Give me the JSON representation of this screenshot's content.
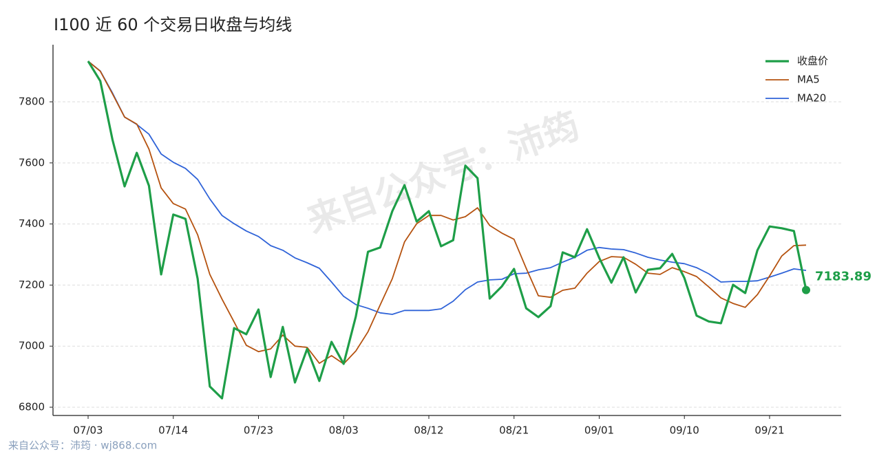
{
  "chart_data": {
    "type": "line",
    "title": "I100 近 60 个交易日收盘与均线",
    "watermark": "来自公众号：沛筠",
    "footer": "来自公众号：沛筠 · wj868.com",
    "categories": [
      "07/03",
      null,
      null,
      null,
      null,
      null,
      null,
      "07/14",
      null,
      null,
      null,
      null,
      null,
      null,
      "07/23",
      null,
      null,
      null,
      null,
      null,
      null,
      "08/03",
      null,
      null,
      null,
      null,
      null,
      null,
      "08/12",
      null,
      null,
      null,
      null,
      null,
      null,
      "08/21",
      null,
      null,
      null,
      null,
      null,
      null,
      "09/01",
      null,
      null,
      null,
      null,
      null,
      null,
      "09/10",
      null,
      null,
      null,
      null,
      null,
      null,
      "09/21",
      null,
      null,
      null
    ],
    "series": [
      {
        "name": "收盘价",
        "color": "#1e9e48",
        "width": 3.2,
        "values": [
          7933,
          7868,
          7676,
          7523,
          7633,
          7525,
          7235,
          7431,
          7417,
          7221,
          6868,
          6829,
          7059,
          7039,
          7120,
          6899,
          7063,
          6881,
          6991,
          6886,
          7014,
          6942,
          7097,
          7309,
          7323,
          7442,
          7527,
          7408,
          7442,
          7327,
          7347,
          7591,
          7550,
          7156,
          7196,
          7253,
          7124,
          7095,
          7131,
          7307,
          7291,
          7383,
          7289,
          7208,
          7291,
          7176,
          7250,
          7255,
          7302,
          7223,
          7100,
          7081,
          7075,
          7201,
          7174,
          7314,
          7392,
          7386,
          7377,
          7183.89
        ]
      },
      {
        "name": "MA5",
        "color": "#b5520f",
        "width": 1.8,
        "values": [
          7933,
          7900,
          7826,
          7750,
          7727,
          7645,
          7518,
          7467,
          7449,
          7365,
          7235,
          7154,
          7079,
          7003,
          6982,
          6991,
          7036,
          7000,
          6996,
          6944,
          6969,
          6942,
          6984,
          7047,
          7135,
          7221,
          7341,
          7401,
          7428,
          7428,
          7413,
          7424,
          7453,
          7395,
          7370,
          7350,
          7255,
          7165,
          7160,
          7183,
          7190,
          7239,
          7277,
          7293,
          7291,
          7268,
          7239,
          7235,
          7257,
          7244,
          7228,
          7194,
          7158,
          7140,
          7127,
          7169,
          7230,
          7295,
          7329,
          7331
        ]
      },
      {
        "name": "MA20",
        "color": "#2f63d8",
        "width": 1.8,
        "values": [
          7933,
          7901,
          7829,
          7750,
          7726,
          7694,
          7629,
          7602,
          7582,
          7546,
          7482,
          7428,
          7401,
          7377,
          7359,
          7329,
          7314,
          7289,
          7273,
          7255,
          7210,
          7163,
          7136,
          7124,
          7109,
          7104,
          7117,
          7117,
          7117,
          7122,
          7147,
          7185,
          7210,
          7217,
          7219,
          7237,
          7239,
          7250,
          7257,
          7275,
          7291,
          7314,
          7323,
          7318,
          7316,
          7305,
          7291,
          7282,
          7275,
          7270,
          7257,
          7237,
          7210,
          7212,
          7212,
          7214,
          7226,
          7239,
          7253,
          7248
        ]
      }
    ],
    "ylim": [
      6773,
      7987
    ],
    "yticks": [
      6800,
      7000,
      7200,
      7400,
      7600,
      7800
    ],
    "grid": true,
    "legend": "upper right"
  }
}
